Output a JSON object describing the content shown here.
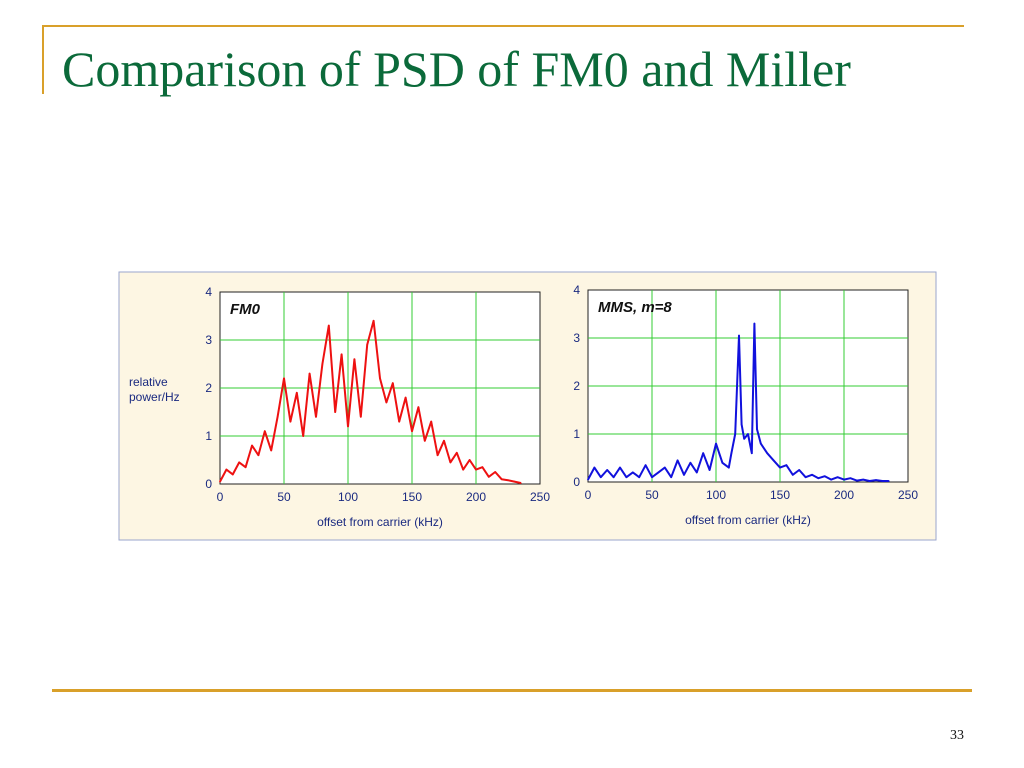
{
  "slide": {
    "title": "Comparison of PSD of FM0 and Miller",
    "page_number": "33"
  },
  "colors": {
    "title": "#0b6a3a",
    "accent": "#d9a02a",
    "panel_background": "#fdf6e3",
    "panel_border": "#9aa6cc",
    "grid": "#33cc33",
    "fm0_series": "#ee1111",
    "miller_series": "#1111dd"
  },
  "chart_data": [
    {
      "type": "line",
      "annotation": "FM0",
      "xlabel": "offset from carrier (kHz)",
      "ylabel": "relative power/Hz",
      "xlim": [
        0,
        250
      ],
      "ylim": [
        0,
        4
      ],
      "xticks": [
        0,
        50,
        100,
        150,
        200,
        250
      ],
      "yticks": [
        0,
        1,
        2,
        3,
        4
      ],
      "grid": true,
      "series": [
        {
          "color": "#ee1111",
          "x": [
            0,
            5,
            10,
            15,
            20,
            25,
            30,
            35,
            40,
            45,
            50,
            55,
            60,
            65,
            70,
            75,
            80,
            85,
            90,
            95,
            100,
            105,
            110,
            115,
            120,
            125,
            130,
            135,
            140,
            145,
            150,
            155,
            160,
            165,
            170,
            175,
            180,
            185,
            190,
            195,
            200,
            205,
            210,
            215,
            220,
            225,
            230,
            235
          ],
          "y": [
            0.05,
            0.3,
            0.2,
            0.45,
            0.35,
            0.8,
            0.6,
            1.1,
            0.7,
            1.4,
            2.2,
            1.3,
            1.9,
            1.0,
            2.3,
            1.4,
            2.5,
            3.3,
            1.5,
            2.7,
            1.2,
            2.6,
            1.4,
            2.9,
            3.4,
            2.2,
            1.7,
            2.1,
            1.3,
            1.8,
            1.1,
            1.6,
            0.9,
            1.3,
            0.6,
            0.9,
            0.45,
            0.65,
            0.3,
            0.5,
            0.3,
            0.35,
            0.15,
            0.25,
            0.1,
            0.08,
            0.05,
            0.02
          ]
        }
      ]
    },
    {
      "type": "line",
      "annotation": "MMS, m=8",
      "xlabel": "offset from carrier (kHz)",
      "ylabel": "",
      "xlim": [
        0,
        250
      ],
      "ylim": [
        0,
        4
      ],
      "xticks": [
        0,
        50,
        100,
        150,
        200,
        250
      ],
      "yticks": [
        0,
        1,
        2,
        3,
        4
      ],
      "grid": true,
      "series": [
        {
          "color": "#1111dd",
          "x": [
            0,
            5,
            10,
            15,
            20,
            25,
            30,
            35,
            40,
            45,
            50,
            55,
            60,
            65,
            70,
            75,
            80,
            85,
            90,
            95,
            100,
            105,
            110,
            112,
            115,
            118,
            120,
            122,
            125,
            128,
            130,
            132,
            135,
            140,
            145,
            150,
            155,
            160,
            165,
            170,
            175,
            180,
            185,
            190,
            195,
            200,
            205,
            210,
            215,
            220,
            225,
            230,
            235
          ],
          "y": [
            0.05,
            0.3,
            0.1,
            0.25,
            0.1,
            0.3,
            0.1,
            0.2,
            0.1,
            0.35,
            0.1,
            0.2,
            0.3,
            0.1,
            0.45,
            0.15,
            0.4,
            0.2,
            0.6,
            0.25,
            0.8,
            0.4,
            0.3,
            0.6,
            1.0,
            3.05,
            1.2,
            0.9,
            1.0,
            0.6,
            3.3,
            1.1,
            0.8,
            0.6,
            0.45,
            0.3,
            0.35,
            0.15,
            0.25,
            0.1,
            0.15,
            0.08,
            0.12,
            0.05,
            0.1,
            0.05,
            0.08,
            0.03,
            0.05,
            0.02,
            0.04,
            0.02,
            0.02
          ]
        }
      ]
    }
  ]
}
